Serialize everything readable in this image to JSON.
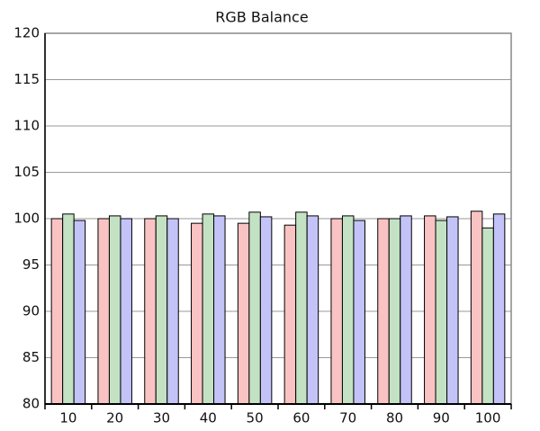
{
  "chart_data": {
    "type": "bar",
    "title": "RGB Balance",
    "categories": [
      "10",
      "20",
      "30",
      "40",
      "50",
      "60",
      "70",
      "80",
      "90",
      "100"
    ],
    "series": [
      {
        "color": "#fac3c3",
        "values": [
          100.0,
          100.0,
          100.0,
          99.5,
          99.5,
          99.3,
          100.0,
          100.0,
          100.3,
          100.8
        ]
      },
      {
        "color": "#c3e2c3",
        "values": [
          100.5,
          100.3,
          100.3,
          100.5,
          100.7,
          100.7,
          100.3,
          100.0,
          99.8,
          99.0
        ]
      },
      {
        "color": "#c3c3f8",
        "values": [
          99.8,
          100.0,
          100.0,
          100.3,
          100.2,
          100.3,
          99.8,
          100.3,
          100.2,
          100.5
        ]
      }
    ],
    "ylim": [
      80,
      120
    ],
    "yticks": [
      80,
      85,
      90,
      95,
      100,
      105,
      110,
      115,
      120
    ],
    "grid": true
  }
}
